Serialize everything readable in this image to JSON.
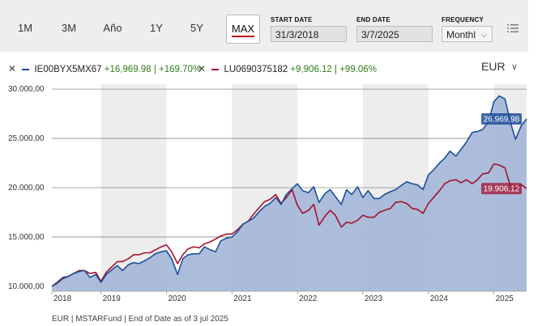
{
  "toolbar": {
    "ranges": [
      {
        "label": "1M"
      },
      {
        "label": "3M"
      },
      {
        "label": "Año"
      },
      {
        "label": "1Y"
      },
      {
        "label": "5Y"
      },
      {
        "label": "MAX"
      }
    ],
    "selected_range": "MAX",
    "start_date": {
      "label": "START DATE",
      "value": "31/3/2018"
    },
    "end_date": {
      "label": "END DATE",
      "value": "3/7/2025"
    },
    "frequency": {
      "label": "FREQUENCY",
      "value": "Monthl"
    },
    "list_icon": "list-settings-icon"
  },
  "legend": {
    "items": [
      {
        "name": "IE00BYX5MX67",
        "gain": "+16,969.98 | +169.70%",
        "color": "#1e4f9a",
        "remove_icon": "close-icon"
      },
      {
        "name": "LU0690375182",
        "gain": "+9,906.12 | +99.06%",
        "color": "#a3122f",
        "remove_icon": "close-icon"
      }
    ],
    "currency": "EUR"
  },
  "footer": "EUR | MSTARFund | End of Date as of 3 jul 2025",
  "colors": {
    "series1": "#1e4f9a",
    "series2": "#a3122f",
    "area": "#a6b9d9",
    "band": "#ededed",
    "accent": "#c0131b"
  },
  "chart_data": {
    "type": "line",
    "y_tick_labels": [
      "10.000,00",
      "15.000,00",
      "20.000,00",
      "25.000,00",
      "30.000,00"
    ],
    "y_ticks": [
      10000,
      15000,
      20000,
      25000,
      30000
    ],
    "ylim": [
      9500,
      30500
    ],
    "x_tick_labels": [
      "2018",
      "2019",
      "2020",
      "2021",
      "2022",
      "2023",
      "2024",
      "2025"
    ],
    "x_ticks": [
      2018.0,
      2019.0,
      2020.0,
      2021.0,
      2022.0,
      2023.0,
      2024.0,
      2025.0
    ],
    "xlim": [
      2018.25,
      2025.5
    ],
    "grid": true,
    "shaded_years": [
      2019,
      2021,
      2023,
      2025
    ],
    "end_labels": [
      {
        "series": "IE00BYX5MX67",
        "text": "26.969,98",
        "value": 26969.98
      },
      {
        "series": "LU0690375182",
        "text": "19.906,12",
        "value": 19906.12
      }
    ],
    "series": [
      {
        "name": "IE00BYX5MX67",
        "x": [
          2018.25,
          2018.33,
          2018.42,
          2018.5,
          2018.58,
          2018.67,
          2018.75,
          2018.83,
          2018.92,
          2019.0,
          2019.08,
          2019.17,
          2019.25,
          2019.33,
          2019.42,
          2019.5,
          2019.58,
          2019.67,
          2019.75,
          2019.83,
          2019.92,
          2020.0,
          2020.08,
          2020.17,
          2020.25,
          2020.33,
          2020.42,
          2020.5,
          2020.58,
          2020.67,
          2020.75,
          2020.83,
          2020.92,
          2021.0,
          2021.08,
          2021.17,
          2021.25,
          2021.33,
          2021.42,
          2021.5,
          2021.58,
          2021.67,
          2021.75,
          2021.83,
          2021.92,
          2022.0,
          2022.08,
          2022.17,
          2022.25,
          2022.33,
          2022.42,
          2022.5,
          2022.58,
          2022.67,
          2022.75,
          2022.83,
          2022.92,
          2023.0,
          2023.08,
          2023.17,
          2023.25,
          2023.33,
          2023.42,
          2023.5,
          2023.58,
          2023.67,
          2023.75,
          2023.83,
          2023.92,
          2024.0,
          2024.08,
          2024.17,
          2024.25,
          2024.33,
          2024.42,
          2024.5,
          2024.58,
          2024.67,
          2024.75,
          2024.83,
          2024.92,
          2025.0,
          2025.08,
          2025.17,
          2025.25,
          2025.33,
          2025.42,
          2025.5
        ],
        "y": [
          10000,
          10400,
          10900,
          11000,
          11300,
          11500,
          11600,
          10900,
          11200,
          10400,
          11200,
          11700,
          12100,
          11600,
          12200,
          12400,
          12300,
          12600,
          12900,
          13300,
          13500,
          13600,
          12800,
          11200,
          12800,
          13200,
          13300,
          13300,
          14000,
          13700,
          13500,
          14600,
          14900,
          15000,
          15500,
          16300,
          16600,
          16900,
          17600,
          18100,
          18400,
          19000,
          18300,
          19300,
          19900,
          20400,
          19700,
          19500,
          20100,
          18500,
          19400,
          19800,
          19100,
          18300,
          19800,
          19300,
          20100,
          19000,
          19700,
          18900,
          18900,
          19300,
          19600,
          19800,
          20200,
          20600,
          20400,
          20300,
          19800,
          21300,
          21800,
          22500,
          23000,
          23700,
          23200,
          23900,
          24600,
          25600,
          25700,
          25900,
          26700,
          28700,
          29300,
          29000,
          26700,
          24900,
          26300,
          26970
        ]
      },
      {
        "name": "LU0690375182",
        "x": [
          2018.25,
          2018.33,
          2018.42,
          2018.5,
          2018.58,
          2018.67,
          2018.75,
          2018.83,
          2018.92,
          2019.0,
          2019.08,
          2019.17,
          2019.25,
          2019.33,
          2019.42,
          2019.5,
          2019.58,
          2019.67,
          2019.75,
          2019.83,
          2019.92,
          2020.0,
          2020.08,
          2020.17,
          2020.25,
          2020.33,
          2020.42,
          2020.5,
          2020.58,
          2020.67,
          2020.75,
          2020.83,
          2020.92,
          2021.0,
          2021.08,
          2021.17,
          2021.25,
          2021.33,
          2021.42,
          2021.5,
          2021.58,
          2021.67,
          2021.75,
          2021.83,
          2021.92,
          2022.0,
          2022.08,
          2022.17,
          2022.25,
          2022.33,
          2022.42,
          2022.5,
          2022.58,
          2022.67,
          2022.75,
          2022.83,
          2022.92,
          2023.0,
          2023.08,
          2023.17,
          2023.25,
          2023.33,
          2023.42,
          2023.5,
          2023.58,
          2023.67,
          2023.75,
          2023.83,
          2023.92,
          2024.0,
          2024.08,
          2024.17,
          2024.25,
          2024.33,
          2024.42,
          2024.5,
          2024.58,
          2024.67,
          2024.75,
          2024.83,
          2024.92,
          2025.0,
          2025.08,
          2025.17,
          2025.25,
          2025.33,
          2025.42,
          2025.5
        ],
        "y": [
          10000,
          10300,
          10800,
          11000,
          11300,
          11600,
          11600,
          11300,
          11400,
          10500,
          11400,
          12000,
          12500,
          12500,
          12800,
          13200,
          13200,
          13400,
          13400,
          13700,
          14000,
          14200,
          13500,
          12300,
          13200,
          13800,
          14000,
          13900,
          14300,
          14500,
          14800,
          15100,
          15300,
          15300,
          15700,
          16300,
          16600,
          17300,
          18000,
          18600,
          18800,
          19300,
          18400,
          19000,
          19800,
          18200,
          17400,
          17700,
          18300,
          16200,
          17100,
          17700,
          17200,
          16000,
          16500,
          16400,
          16700,
          17200,
          17000,
          17000,
          17500,
          17700,
          17900,
          18500,
          18600,
          18400,
          17900,
          17800,
          17400,
          18400,
          19000,
          19700,
          20400,
          20700,
          20800,
          20500,
          20800,
          20400,
          20800,
          21400,
          21500,
          22400,
          22300,
          22000,
          20200,
          19900,
          20300,
          19906
        ]
      }
    ]
  }
}
